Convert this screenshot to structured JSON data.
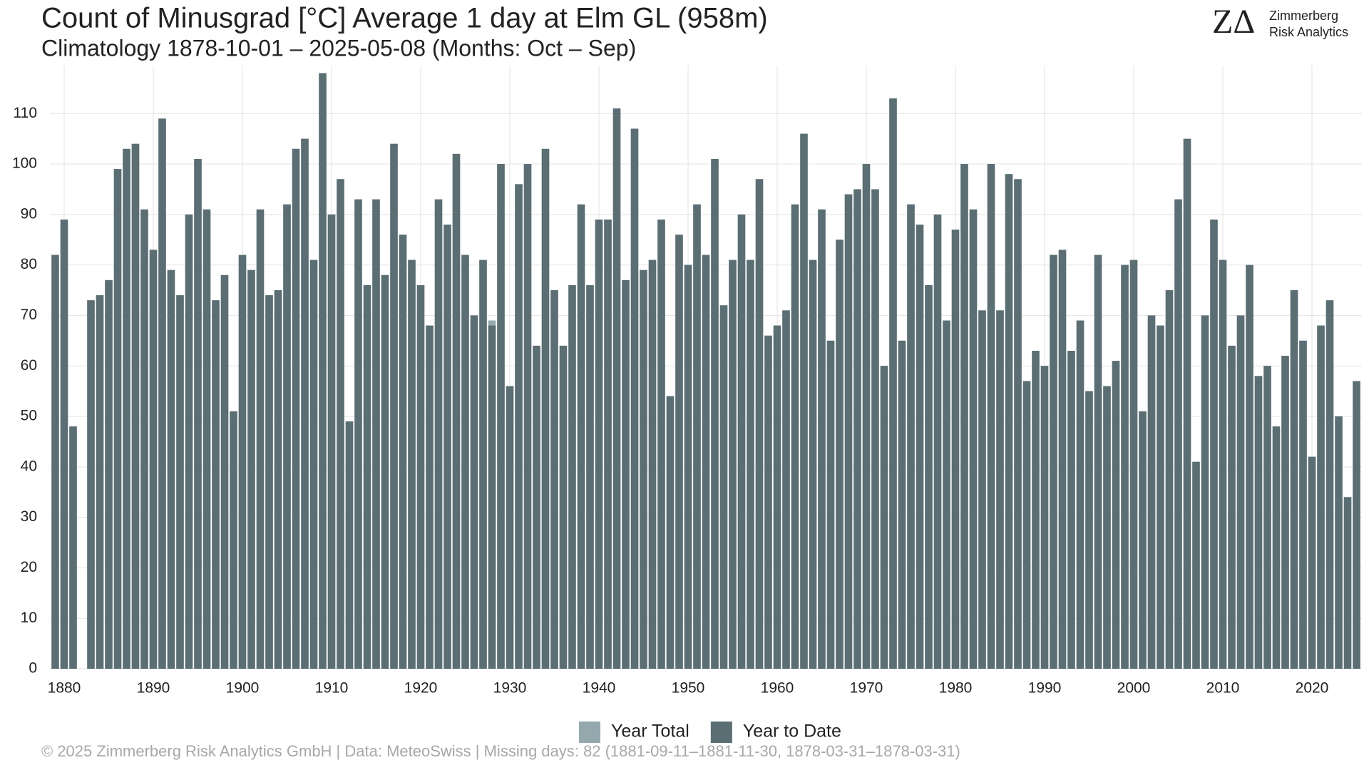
{
  "chart_data": {
    "type": "bar",
    "title": "Count of Minusgrad [°C] Average 1 day at Elm  GL (958m)",
    "subtitle": "Climatology 1878-10-01 – 2025-05-08 (Months: Oct – Sep)",
    "logo": {
      "mark": "ZΔ",
      "line1": "Zimmerberg",
      "line2": "Risk Analytics"
    },
    "footer": "©  2025 Zimmerberg Risk Analytics GmbH | Data: MeteoSwiss | Missing days: 82 (1881-09-11–1881-11-30, 1878-03-31–1878-03-31)",
    "x": [
      1879,
      1880,
      1881,
      1882,
      1883,
      1884,
      1885,
      1886,
      1887,
      1888,
      1889,
      1890,
      1891,
      1892,
      1893,
      1894,
      1895,
      1896,
      1897,
      1898,
      1899,
      1900,
      1901,
      1902,
      1903,
      1904,
      1905,
      1906,
      1907,
      1908,
      1909,
      1910,
      1911,
      1912,
      1913,
      1914,
      1915,
      1916,
      1917,
      1918,
      1919,
      1920,
      1921,
      1922,
      1923,
      1924,
      1925,
      1926,
      1927,
      1928,
      1929,
      1930,
      1931,
      1932,
      1933,
      1934,
      1935,
      1936,
      1937,
      1938,
      1939,
      1940,
      1941,
      1942,
      1943,
      1944,
      1945,
      1946,
      1947,
      1948,
      1949,
      1950,
      1951,
      1952,
      1953,
      1954,
      1955,
      1956,
      1957,
      1958,
      1959,
      1960,
      1961,
      1962,
      1963,
      1964,
      1965,
      1966,
      1967,
      1968,
      1969,
      1970,
      1971,
      1972,
      1973,
      1974,
      1975,
      1976,
      1977,
      1978,
      1979,
      1980,
      1981,
      1982,
      1983,
      1984,
      1985,
      1986,
      1987,
      1988,
      1989,
      1990,
      1991,
      1992,
      1993,
      1994,
      1995,
      1996,
      1997,
      1998,
      1999,
      2000,
      2001,
      2002,
      2003,
      2004,
      2005,
      2006,
      2007,
      2008,
      2009,
      2010,
      2011,
      2012,
      2013,
      2014,
      2015,
      2016,
      2017,
      2018,
      2019,
      2020,
      2021,
      2022,
      2023,
      2024,
      2025
    ],
    "series": [
      {
        "name": "Year Total",
        "color": "#95a8ae",
        "values": [
          82,
          89,
          48,
          null,
          73,
          74,
          77,
          99,
          103,
          104,
          91,
          83,
          109,
          79,
          74,
          90,
          101,
          91,
          73,
          78,
          51,
          82,
          79,
          91,
          74,
          75,
          92,
          103,
          105,
          81,
          118,
          90,
          97,
          49,
          93,
          76,
          93,
          78,
          104,
          86,
          81,
          76,
          68,
          93,
          88,
          102,
          82,
          70,
          81,
          69,
          100,
          56,
          96,
          100,
          64,
          103,
          75,
          64,
          76,
          92,
          76,
          89,
          89,
          111,
          77,
          107,
          79,
          81,
          89,
          54,
          86,
          80,
          92,
          82,
          101,
          72,
          81,
          90,
          81,
          97,
          66,
          68,
          71,
          92,
          106,
          81,
          91,
          65,
          85,
          94,
          95,
          100,
          95,
          60,
          113,
          65,
          92,
          88,
          76,
          90,
          69,
          87,
          100,
          91,
          71,
          100,
          71,
          98,
          97,
          57,
          63,
          60,
          82,
          83,
          63,
          69,
          55,
          82,
          56,
          61,
          80,
          81,
          51,
          70,
          68,
          75,
          93,
          105,
          41,
          70,
          89,
          81,
          64,
          70,
          80,
          58,
          60,
          48,
          62,
          75,
          65,
          42,
          68,
          73,
          50,
          34,
          57
        ]
      },
      {
        "name": "Year to Date",
        "color": "#5b6e73",
        "values": [
          82,
          89,
          48,
          null,
          73,
          74,
          77,
          99,
          103,
          104,
          91,
          83,
          109,
          79,
          74,
          90,
          101,
          91,
          73,
          78,
          51,
          82,
          79,
          91,
          74,
          75,
          92,
          103,
          105,
          81,
          118,
          90,
          97,
          49,
          93,
          76,
          93,
          78,
          104,
          86,
          81,
          76,
          68,
          93,
          88,
          102,
          82,
          70,
          81,
          68,
          100,
          56,
          96,
          100,
          64,
          103,
          75,
          64,
          76,
          92,
          76,
          89,
          89,
          111,
          77,
          107,
          79,
          81,
          89,
          54,
          86,
          80,
          92,
          82,
          101,
          72,
          81,
          90,
          81,
          97,
          66,
          68,
          71,
          92,
          106,
          81,
          91,
          65,
          85,
          94,
          95,
          100,
          95,
          60,
          113,
          65,
          92,
          88,
          76,
          90,
          69,
          87,
          100,
          91,
          71,
          100,
          71,
          98,
          97,
          57,
          63,
          60,
          82,
          83,
          63,
          69,
          55,
          82,
          56,
          61,
          80,
          81,
          51,
          70,
          68,
          75,
          93,
          105,
          41,
          70,
          89,
          81,
          64,
          70,
          80,
          58,
          60,
          48,
          62,
          75,
          65,
          42,
          68,
          73,
          50,
          34,
          57
        ]
      }
    ],
    "xlim": [
      1878.4,
      2025.6
    ],
    "xticks": [
      1880,
      1890,
      1900,
      1910,
      1920,
      1930,
      1940,
      1950,
      1960,
      1970,
      1980,
      1990,
      2000,
      2010,
      2020
    ],
    "ylim": [
      0,
      119.5
    ],
    "yticks": [
      0,
      10,
      20,
      30,
      40,
      50,
      60,
      70,
      80,
      90,
      100,
      110
    ],
    "grid": true
  }
}
